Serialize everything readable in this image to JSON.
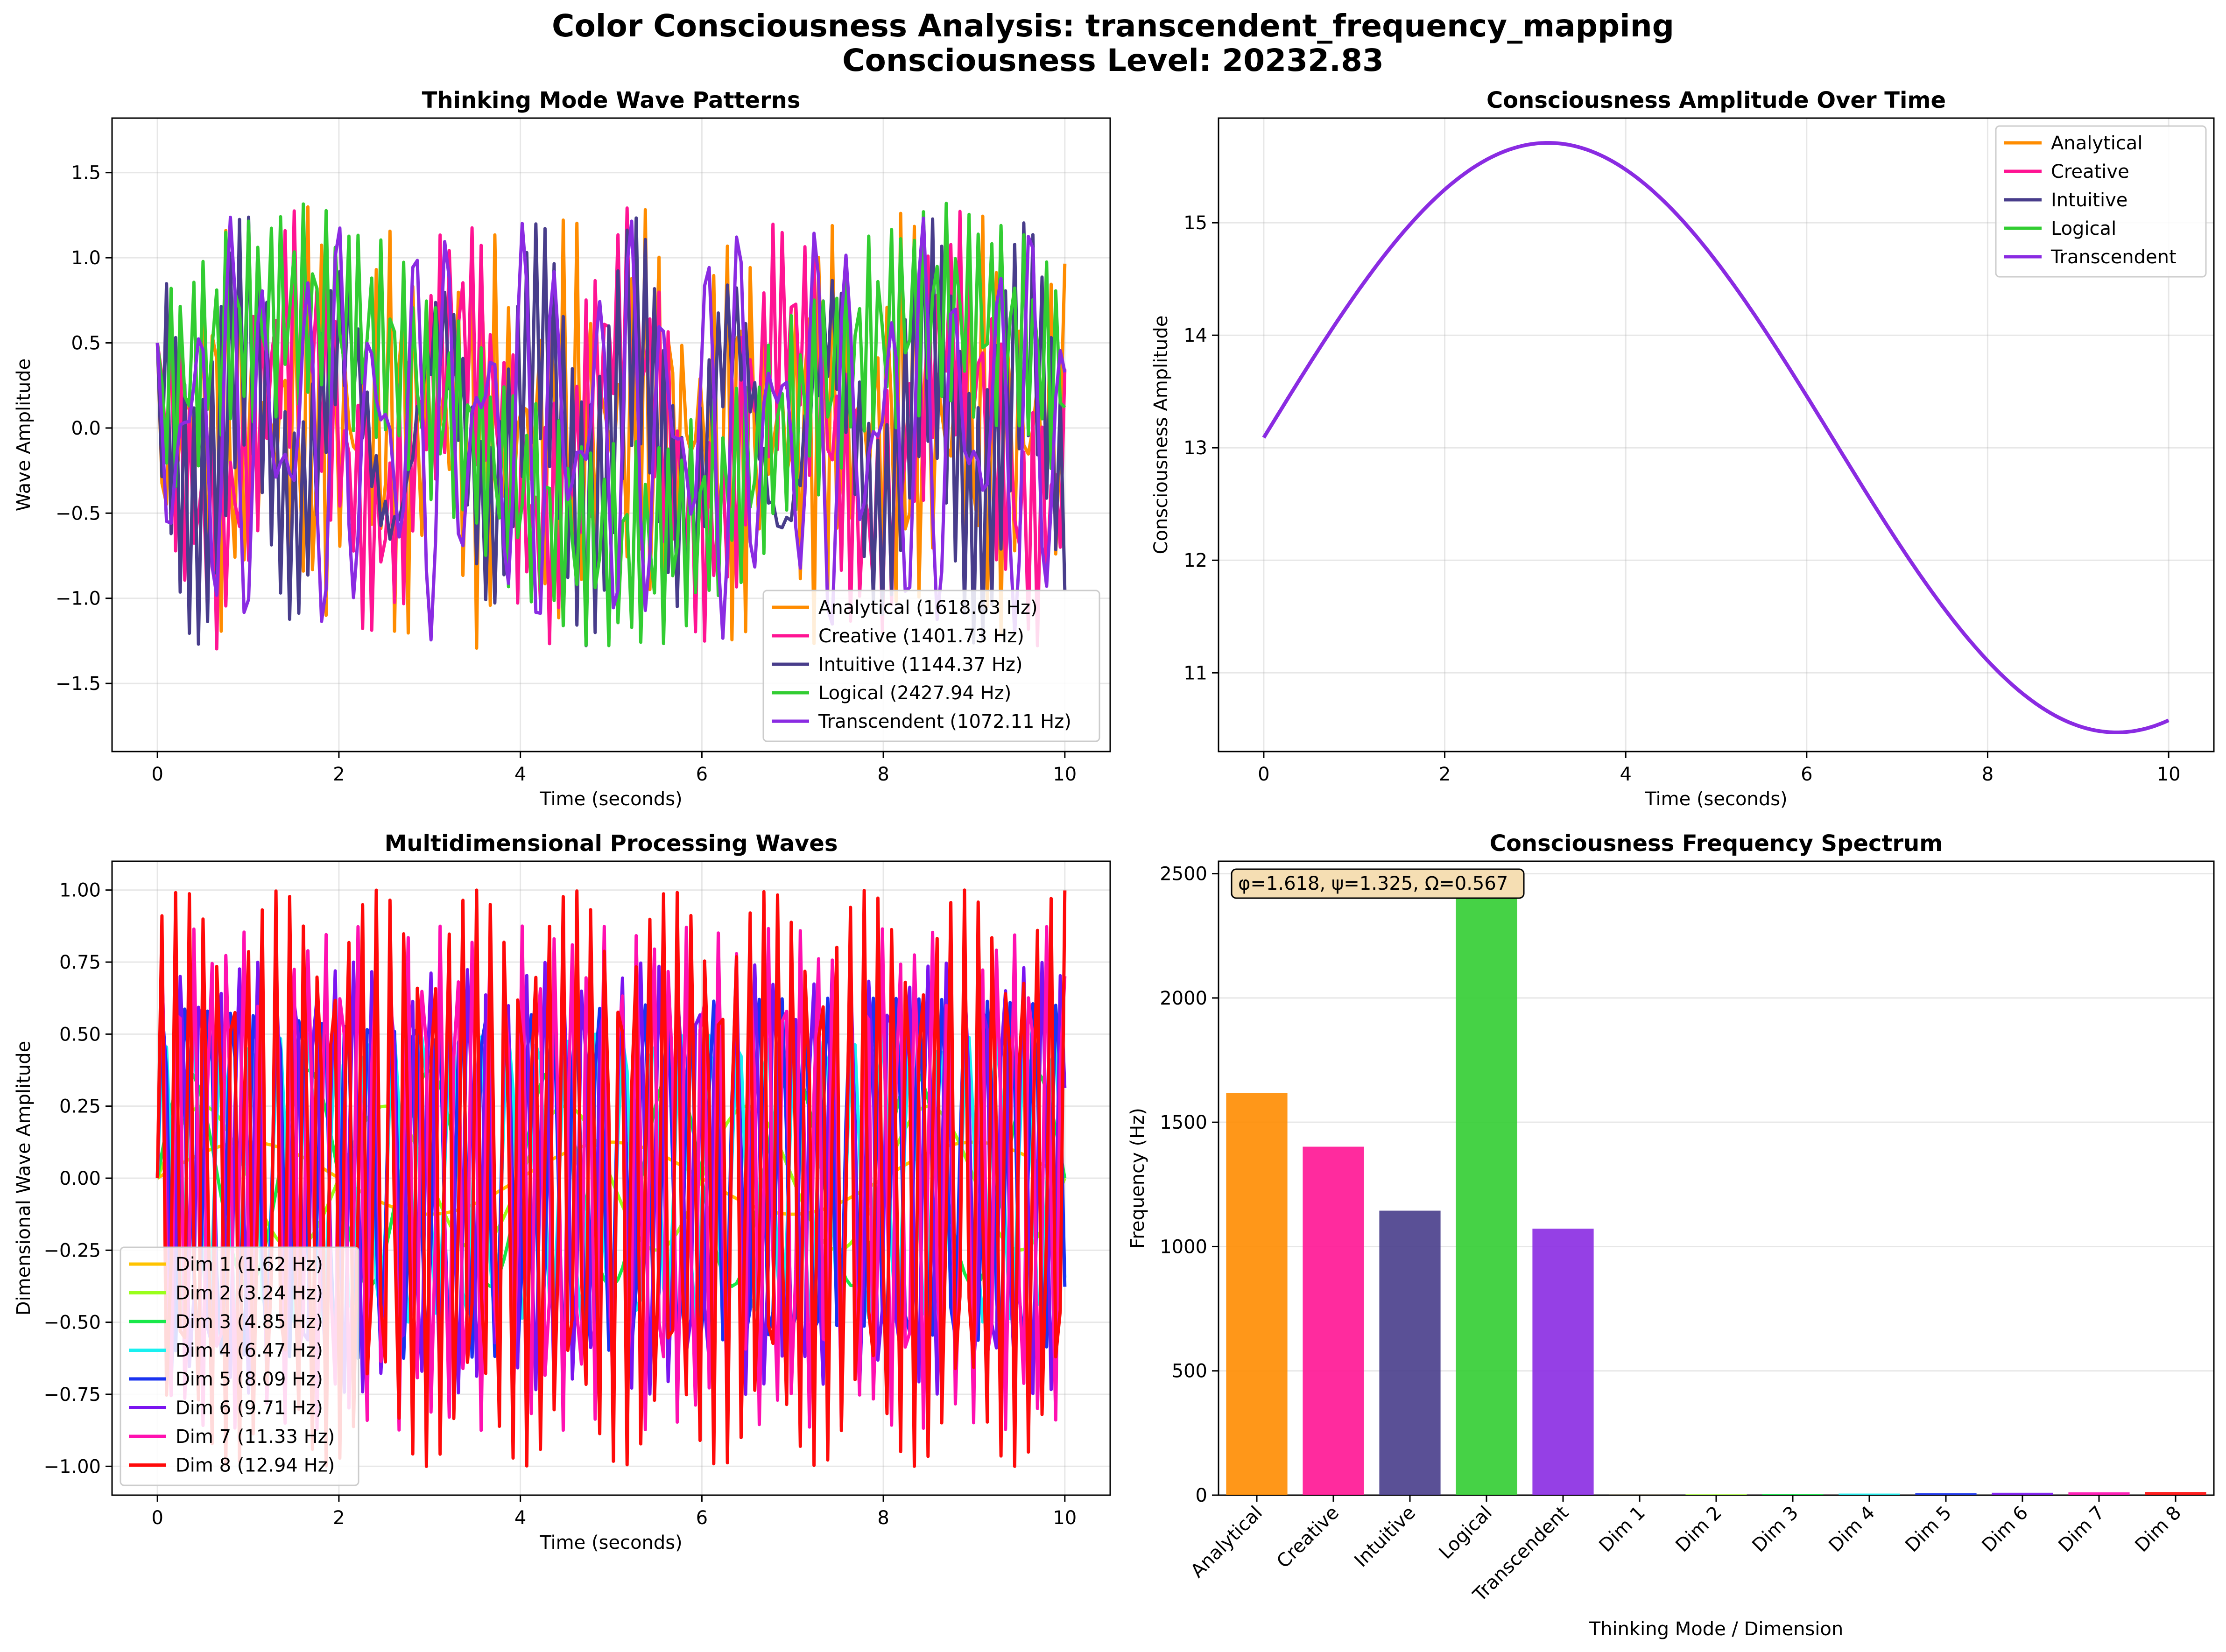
{
  "figure": {
    "title_line1": "Color Consciousness Analysis: transcendent_frequency_mapping",
    "title_line2": "Consciousness Level: 20232.83"
  },
  "chart_data": [
    {
      "id": "thinking",
      "type": "line",
      "title": "Thinking Mode Wave Patterns",
      "xlabel": "Time (seconds)",
      "ylabel": "Wave Amplitude",
      "xlim": [
        -0.5,
        10.5
      ],
      "ylim": [
        -1.9,
        1.82
      ],
      "xticks": [
        0,
        2,
        4,
        6,
        8,
        10
      ],
      "yticks": [
        -1.5,
        -1.0,
        -0.5,
        0.0,
        0.5,
        1.0,
        1.5
      ],
      "ytick_labels": [
        "−1.5",
        "−1.0",
        "−0.5",
        "0.0",
        "0.5",
        "1.0",
        "1.5"
      ],
      "grid": true,
      "legend_position": "lower-right",
      "t_start": 0,
      "t_end": 10,
      "samples": 200,
      "series": [
        {
          "name": "Analytical (1618.63 Hz)",
          "color": "#FF8C00",
          "frequency": 1618.63,
          "amplitude": 1.0,
          "harmonic_amplitude": 0.62,
          "phase": 0.7
        },
        {
          "name": "Creative (1401.73 Hz)",
          "color": "#FF1493",
          "frequency": 1401.73,
          "amplitude": 1.0,
          "harmonic_amplitude": 0.6,
          "phase": 0.3
        },
        {
          "name": "Intuitive (1144.37 Hz)",
          "color": "#483D8B",
          "frequency": 1144.37,
          "amplitude": 1.0,
          "harmonic_amplitude": 0.58,
          "phase": 1.1
        },
        {
          "name": "Logical (2427.94 Hz)",
          "color": "#32CD32",
          "frequency": 2427.94,
          "amplitude": 1.0,
          "harmonic_amplitude": 0.62,
          "phase": 0.2
        },
        {
          "name": "Transcendent (1072.11 Hz)",
          "color": "#8A2BE2",
          "frequency": 1072.11,
          "amplitude": 1.0,
          "harmonic_amplitude": 0.55,
          "phase": 1.5
        }
      ]
    },
    {
      "id": "amplitude",
      "type": "line",
      "title": "Consciousness Amplitude Over Time",
      "xlabel": "Time (seconds)",
      "ylabel": "Consciousness Amplitude",
      "xlim": [
        -0.5,
        10.5
      ],
      "ylim": [
        10.3,
        15.93
      ],
      "xticks": [
        0,
        2,
        4,
        6,
        8,
        10
      ],
      "yticks": [
        11,
        12,
        13,
        14,
        15
      ],
      "grid": true,
      "legend_position": "upper-right",
      "samples": 200,
      "curve": {
        "mean": 13.09,
        "amplitude": 2.62,
        "angular_frequency": 0.5,
        "t_start": 0,
        "t_end": 10
      },
      "series": [
        {
          "name": "Analytical",
          "color": "#FF8C00"
        },
        {
          "name": "Creative",
          "color": "#FF1493"
        },
        {
          "name": "Intuitive",
          "color": "#483D8B"
        },
        {
          "name": "Logical",
          "color": "#32CD32"
        },
        {
          "name": "Transcendent",
          "color": "#8A2BE2"
        }
      ]
    },
    {
      "id": "dimensional",
      "type": "line",
      "title": "Multidimensional Processing Waves",
      "xlabel": "Time (seconds)",
      "ylabel": "Dimensional Wave Amplitude",
      "xlim": [
        -0.5,
        10.5
      ],
      "ylim": [
        -1.1,
        1.1
      ],
      "xticks": [
        0,
        2,
        4,
        6,
        8,
        10
      ],
      "yticks": [
        -1.0,
        -0.75,
        -0.5,
        -0.25,
        0.0,
        0.25,
        0.5,
        0.75,
        1.0
      ],
      "ytick_labels": [
        "−1.00",
        "−0.75",
        "−0.50",
        "−0.25",
        "0.00",
        "0.25",
        "0.50",
        "0.75",
        "1.00"
      ],
      "grid": true,
      "legend_position": "lower-left",
      "samples": 200,
      "series": [
        {
          "name": "Dim 1 (1.62 Hz)",
          "color": "#FFC300",
          "amplitude": 0.125,
          "cycles_per_second": 0.25
        },
        {
          "name": "Dim 2 (3.24 Hz)",
          "color": "#9AFF1A",
          "amplitude": 0.25,
          "cycles_per_second": 0.5
        },
        {
          "name": "Dim 3 (4.85 Hz)",
          "color": "#19E84A",
          "amplitude": 0.375,
          "cycles_per_second": 0.75
        },
        {
          "name": "Dim 4 (6.47 Hz)",
          "color": "#19F0F0",
          "amplitude": 0.5,
          "cycles_per_second": 1.03
        },
        {
          "name": "Dim 5 (8.09 Hz)",
          "color": "#1A33F0",
          "amplitude": 0.625,
          "cycles_per_second": 1.29
        },
        {
          "name": "Dim 6 (9.71 Hz)",
          "color": "#7A14F0",
          "amplitude": 0.75,
          "cycles_per_second": 1.545
        },
        {
          "name": "Dim 7 (11.33 Hz)",
          "color": "#FF10B0",
          "amplitude": 0.875,
          "cycles_per_second": 1.803
        },
        {
          "name": "Dim 8 (12.94 Hz)",
          "color": "#FF0A0A",
          "amplitude": 1.0,
          "cycles_per_second": 2.06
        }
      ]
    },
    {
      "id": "spectrum",
      "type": "bar",
      "title": "Consciousness Frequency Spectrum",
      "xlabel": "Thinking Mode / Dimension",
      "ylabel": "Frequency (Hz)",
      "ylim": [
        0,
        2550
      ],
      "yticks": [
        0,
        500,
        1000,
        1500,
        2000,
        2500
      ],
      "grid": true,
      "categories": [
        "Analytical",
        "Creative",
        "Intuitive",
        "Logical",
        "Transcendent",
        "Dim 1",
        "Dim 2",
        "Dim 3",
        "Dim 4",
        "Dim 5",
        "Dim 6",
        "Dim 7",
        "Dim 8"
      ],
      "values": [
        1618.63,
        1401.73,
        1144.37,
        2427.94,
        1072.11,
        1.62,
        3.24,
        4.85,
        6.47,
        8.09,
        9.71,
        11.33,
        12.94
      ],
      "colors": [
        "#FF8C00",
        "#FF1493",
        "#483D8B",
        "#32CD32",
        "#8A2BE2",
        "#FFC300",
        "#9AFF1A",
        "#19E84A",
        "#19F0F0",
        "#1A33F0",
        "#7A14F0",
        "#FF10B0",
        "#FF0A0A"
      ],
      "annotation": "φ=1.618, ψ=1.325, Ω=0.567"
    }
  ]
}
